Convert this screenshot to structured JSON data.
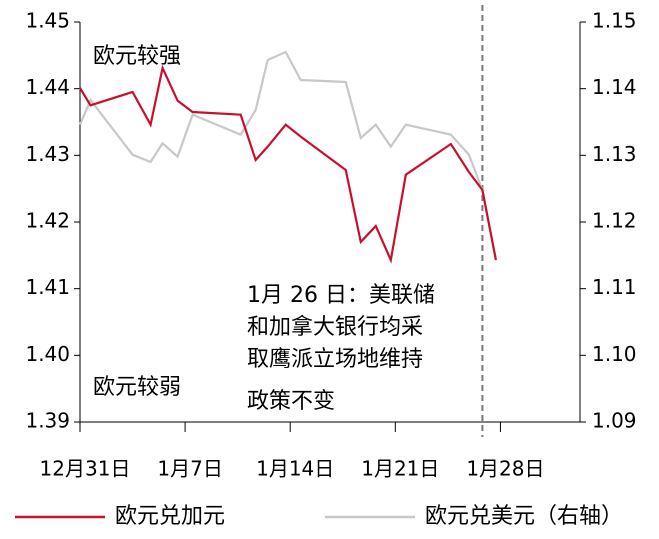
{
  "chart_data": {
    "type": "line",
    "annotations": {
      "strong": "欧元较强",
      "weak": "欧元较弱",
      "event": [
        "1月 26 日：美联储",
        "和加拿大银行均采",
        "取鹰派立场地维持",
        "政策不变"
      ]
    },
    "xlim": [
      0,
      33.3
    ],
    "xticks": [
      {
        "value": 0,
        "label": "12月31日"
      },
      {
        "value": 7,
        "label": "1月7日"
      },
      {
        "value": 14,
        "label": "1月14日"
      },
      {
        "value": 21,
        "label": "1月21日"
      },
      {
        "value": 28,
        "label": "1月28日"
      }
    ],
    "ylim": [
      1.39,
      1.45
    ],
    "yticks": [
      1.39,
      {
        "value": 1.4,
        "label": "1.40"
      },
      1.41,
      1.42,
      1.43,
      1.44,
      1.45
    ],
    "y2lim": [
      1.09,
      1.15
    ],
    "y2ticks": [
      1.09,
      {
        "value": 1.1,
        "label": "1.10"
      },
      1.11,
      1.12,
      1.13,
      1.14,
      1.15
    ],
    "vline_x": 26.8,
    "series": [
      {
        "name": "欧元兑加元",
        "color": "#c8102e",
        "x": [
          0,
          0.7,
          3.5,
          4.7,
          5.5,
          6.5,
          7.5,
          10.7,
          11.7,
          12.5,
          13.7,
          14.7,
          17.7,
          18.7,
          19.7,
          20.7,
          21.7,
          24.7,
          25.9,
          26.8,
          27.7
        ],
        "values": [
          1.4401,
          1.4375,
          1.4395,
          1.4346,
          1.4431,
          1.4382,
          1.4365,
          1.4361,
          1.4293,
          1.4313,
          1.4346,
          1.4328,
          1.4278,
          1.417,
          1.4194,
          1.4143,
          1.4271,
          1.4317,
          1.4275,
          1.4248,
          1.4143
        ]
      },
      {
        "name": "欧元兑美元（右轴）",
        "color": "#c8c8c8",
        "axis": "y2",
        "x": [
          0,
          0.7,
          3.5,
          4.7,
          5.5,
          6.5,
          7.5,
          10.7,
          11.7,
          12.5,
          13.7,
          14.7,
          17.7,
          18.7,
          19.7,
          20.7,
          21.7,
          24.7,
          25.9,
          26.8,
          27.7
        ],
        "values": [
          1.1346,
          1.1383,
          1.1301,
          1.129,
          1.1318,
          1.1298,
          1.1361,
          1.1331,
          1.1368,
          1.1443,
          1.1455,
          1.1413,
          1.141,
          1.1326,
          1.1346,
          1.1313,
          1.1346,
          1.1331,
          1.1301,
          1.1248,
          1.1143
        ]
      }
    ]
  }
}
